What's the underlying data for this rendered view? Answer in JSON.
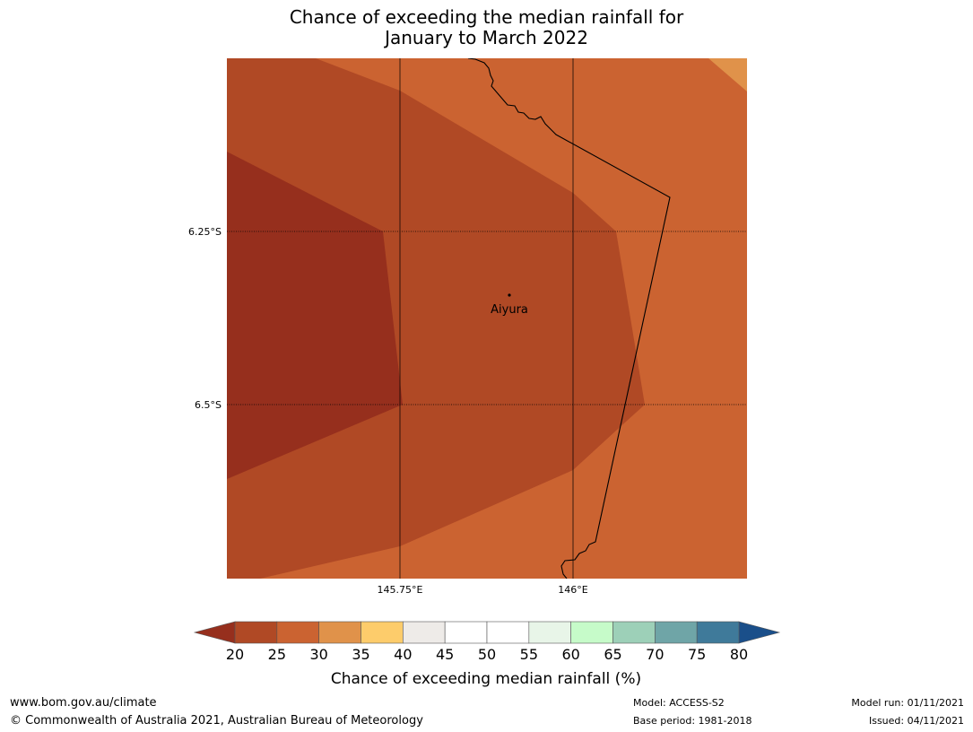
{
  "title": {
    "line1": "Chance of exceeding the median rainfall for",
    "line2": "January to March 2022"
  },
  "map": {
    "lat_labels": [
      "6.25°S",
      "6.5°S"
    ],
    "lon_labels": [
      "145.75°E",
      "146°E"
    ],
    "place": "Aiyura",
    "colors": {
      "20-25": "#962f1d",
      "25-30": "#b04925",
      "30-35": "#cb6331"
    }
  },
  "colorbar": {
    "ticks": [
      "20",
      "25",
      "30",
      "35",
      "40",
      "45",
      "50",
      "55",
      "60",
      "65",
      "70",
      "75",
      "80"
    ],
    "label": "Chance of exceeding median rainfall (%)",
    "under_color": "#962f1d",
    "over_color": "#1a4f8a",
    "colors": [
      "#b04925",
      "#cb6331",
      "#e0924a",
      "#fdcc6b",
      "#eeebe8",
      "#ffffff",
      "#ffffff",
      "#e8f5e8",
      "#c6fbc9",
      "#9dd0b8",
      "#6fa5a7",
      "#3f7a9a"
    ]
  },
  "footer": {
    "website": "www.bom.gov.au/climate",
    "copyright": "© Commonwealth of Australia 2021, Australian Bureau of Meteorology",
    "model": "Model: ACCESS-S2",
    "base_period": "Base period: 1981-2018",
    "model_run": "Model run: 01/11/2021",
    "issued": "Issued: 04/11/2021"
  }
}
